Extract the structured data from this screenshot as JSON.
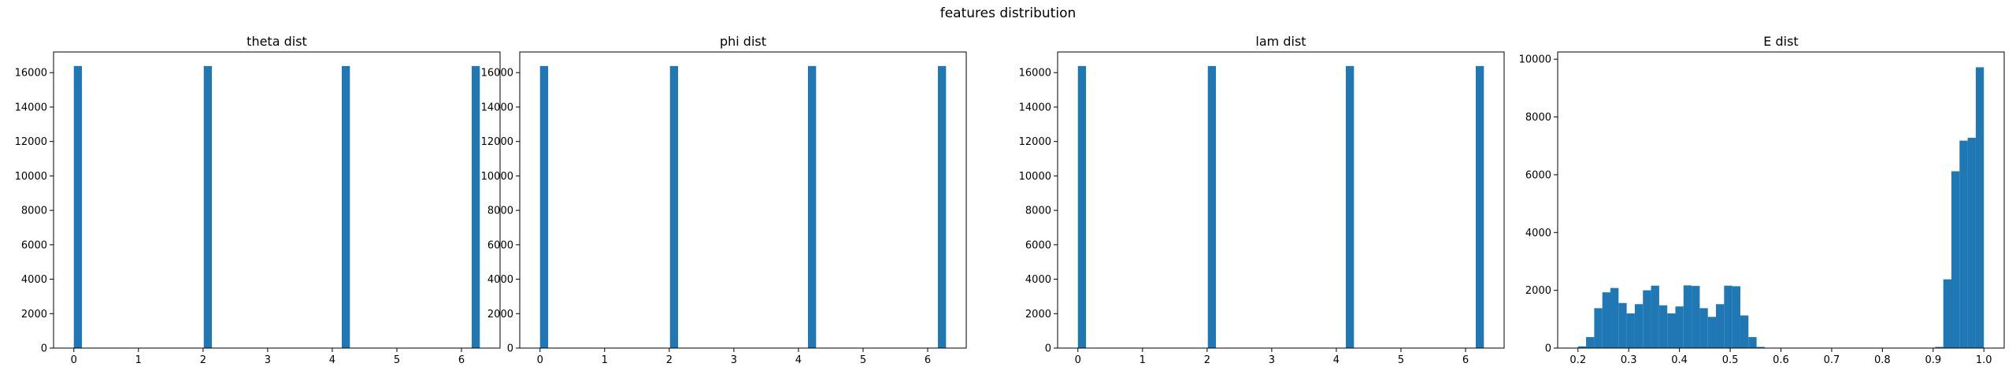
{
  "figure": {
    "suptitle": "features distribution"
  },
  "chart_data": [
    {
      "type": "bar",
      "title": "theta dist",
      "xlabel": "",
      "ylabel": "",
      "xlim": [
        -0.314,
        6.597
      ],
      "ylim": [
        0,
        17200
      ],
      "xticks": [
        0,
        1,
        2,
        3,
        4,
        5,
        6
      ],
      "yticks": [
        0,
        2000,
        4000,
        6000,
        8000,
        10000,
        12000,
        14000,
        16000
      ],
      "bin_width": 0.1257,
      "bins": [
        {
          "x0": 0.0,
          "value": 16384
        },
        {
          "x0": 2.011,
          "value": 16384
        },
        {
          "x0": 4.147,
          "value": 16384
        },
        {
          "x0": 6.158,
          "value": 16384
        }
      ],
      "color": "#1f77b4",
      "grid": false
    },
    {
      "type": "bar",
      "title": "phi dist",
      "xlabel": "",
      "ylabel": "",
      "xlim": [
        -0.314,
        6.597
      ],
      "ylim": [
        0,
        17200
      ],
      "xticks": [
        0,
        1,
        2,
        3,
        4,
        5,
        6
      ],
      "yticks": [
        0,
        2000,
        4000,
        6000,
        8000,
        10000,
        12000,
        14000,
        16000
      ],
      "bin_width": 0.1257,
      "bins": [
        {
          "x0": 0.0,
          "value": 16384
        },
        {
          "x0": 2.011,
          "value": 16384
        },
        {
          "x0": 4.147,
          "value": 16384
        },
        {
          "x0": 6.158,
          "value": 16384
        }
      ],
      "color": "#1f77b4",
      "grid": false
    },
    {
      "type": "bar",
      "title": "lam dist",
      "xlabel": "",
      "ylabel": "",
      "xlim": [
        -0.314,
        6.597
      ],
      "ylim": [
        0,
        17200
      ],
      "xticks": [
        0,
        1,
        2,
        3,
        4,
        5,
        6
      ],
      "yticks": [
        0,
        2000,
        4000,
        6000,
        8000,
        10000,
        12000,
        14000,
        16000
      ],
      "bin_width": 0.1257,
      "bins": [
        {
          "x0": 0.0,
          "value": 16384
        },
        {
          "x0": 2.011,
          "value": 16384
        },
        {
          "x0": 4.147,
          "value": 16384
        },
        {
          "x0": 6.158,
          "value": 16384
        }
      ],
      "color": "#1f77b4",
      "grid": false
    },
    {
      "type": "bar",
      "title": "E dist",
      "xlabel": "",
      "ylabel": "",
      "xlim": [
        0.16,
        1.04
      ],
      "ylim": [
        0,
        10250
      ],
      "xticks": [
        0.2,
        0.3,
        0.4,
        0.5,
        0.6,
        0.7,
        0.8,
        0.9,
        1.0
      ],
      "xtick_labels": [
        "0.2",
        "0.3",
        "0.4",
        "0.5",
        "0.6",
        "0.7",
        "0.8",
        "0.9",
        "1.0"
      ],
      "yticks": [
        0,
        2000,
        4000,
        6000,
        8000,
        10000
      ],
      "bin_width": 0.016,
      "bins": [
        {
          "x0": 0.2,
          "value": 60
        },
        {
          "x0": 0.216,
          "value": 380
        },
        {
          "x0": 0.232,
          "value": 1380
        },
        {
          "x0": 0.248,
          "value": 1930
        },
        {
          "x0": 0.264,
          "value": 2080
        },
        {
          "x0": 0.28,
          "value": 1560
        },
        {
          "x0": 0.296,
          "value": 1200
        },
        {
          "x0": 0.312,
          "value": 1520
        },
        {
          "x0": 0.328,
          "value": 2000
        },
        {
          "x0": 0.344,
          "value": 2160
        },
        {
          "x0": 0.36,
          "value": 1480
        },
        {
          "x0": 0.376,
          "value": 1200
        },
        {
          "x0": 0.392,
          "value": 1440
        },
        {
          "x0": 0.408,
          "value": 2170
        },
        {
          "x0": 0.424,
          "value": 2150
        },
        {
          "x0": 0.44,
          "value": 1380
        },
        {
          "x0": 0.456,
          "value": 1080
        },
        {
          "x0": 0.472,
          "value": 1520
        },
        {
          "x0": 0.488,
          "value": 2160
        },
        {
          "x0": 0.504,
          "value": 2140
        },
        {
          "x0": 0.52,
          "value": 1130
        },
        {
          "x0": 0.536,
          "value": 380
        },
        {
          "x0": 0.552,
          "value": 40
        },
        {
          "x0": 0.904,
          "value": 40
        },
        {
          "x0": 0.92,
          "value": 2380
        },
        {
          "x0": 0.936,
          "value": 6120
        },
        {
          "x0": 0.952,
          "value": 7180
        },
        {
          "x0": 0.968,
          "value": 7280
        },
        {
          "x0": 0.984,
          "value": 9720
        }
      ],
      "color": "#1f77b4",
      "grid": false
    }
  ]
}
